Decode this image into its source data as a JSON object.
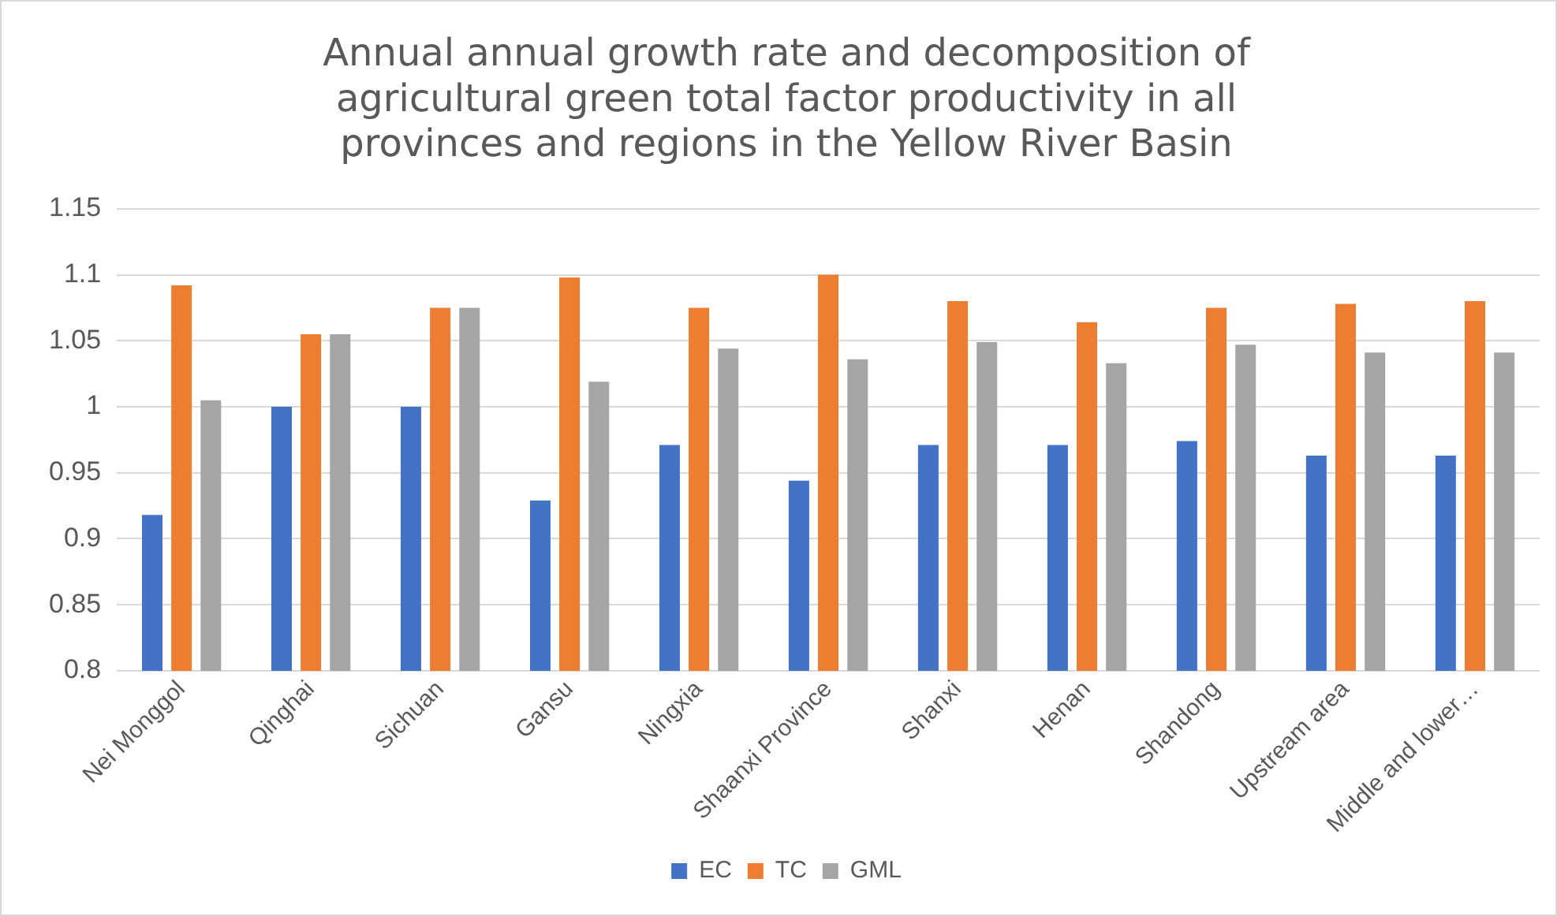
{
  "chart_data": {
    "type": "bar",
    "title": "Annual annual growth rate and decomposition of agricultural green total factor productivity in all provinces and regions in the Yellow River Basin",
    "categories": [
      "Nei Monggol",
      "Qinghai",
      "Sichuan",
      "Gansu",
      "Ningxia",
      "Shaanxi Province",
      "Shanxi",
      "Henan",
      "Shandong",
      "Upstream area",
      "Middle and lower…"
    ],
    "series": [
      {
        "name": "EC",
        "color": "#4472c4",
        "values": [
          0.918,
          1.0,
          1.0,
          0.929,
          0.971,
          0.944,
          0.971,
          0.971,
          0.974,
          0.963,
          0.963
        ]
      },
      {
        "name": "TC",
        "color": "#ed7d31",
        "values": [
          1.092,
          1.055,
          1.075,
          1.098,
          1.075,
          1.1,
          1.08,
          1.064,
          1.075,
          1.078,
          1.08
        ]
      },
      {
        "name": "GML",
        "color": "#a5a5a5",
        "values": [
          1.005,
          1.055,
          1.075,
          1.019,
          1.044,
          1.036,
          1.049,
          1.033,
          1.047,
          1.041,
          1.041
        ]
      }
    ],
    "ylim": [
      0.8,
      1.15
    ],
    "yticks": [
      0.8,
      0.85,
      0.9,
      0.95,
      1,
      1.05,
      1.1,
      1.15
    ],
    "grid": "y",
    "legend": "bottom"
  }
}
